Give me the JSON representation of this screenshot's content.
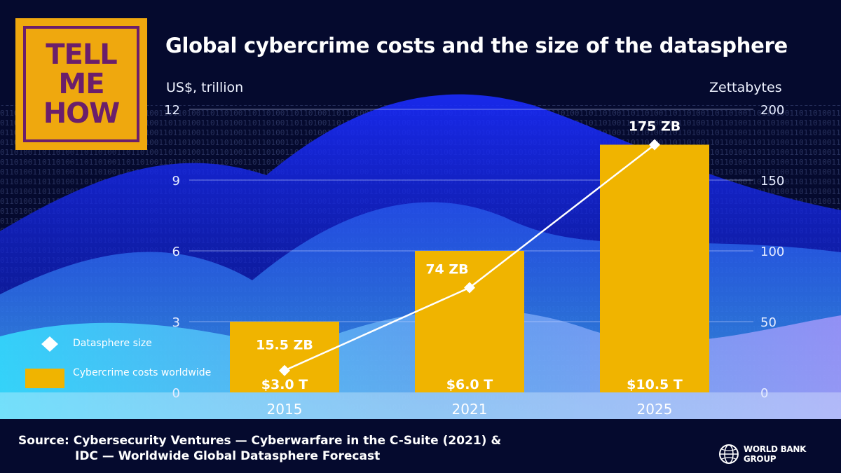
{
  "logo": {
    "line1": "TELL",
    "line2": "ME",
    "line3": "HOW"
  },
  "title": "Global cybercrime costs and the size of the datasphere",
  "left_axis_title": "US$, trillion",
  "right_axis_title": "Zettabytes",
  "source": {
    "line1": "Source: Cybersecurity Ventures — Cyberwarfare in the C-Suite (2021) &",
    "line2": "IDC — Worldwide Global Datasphere Forecast"
  },
  "brand": "WORLD BANK GROUP",
  "legend": {
    "line_label": "Datasphere size",
    "bar_label": "Cybercrime costs worldwide"
  },
  "colors": {
    "bar": "#f0b400",
    "line": "#ffffff",
    "logo_bg": "#efa80e",
    "logo_fg": "#6b1e6b"
  },
  "chart_data": {
    "type": "bar",
    "categories": [
      "2015",
      "2021",
      "2025"
    ],
    "series": [
      {
        "name": "Cybercrime costs worldwide",
        "type": "bar",
        "axis": "left",
        "values": [
          3.0,
          6.0,
          10.5
        ],
        "labels": [
          "$3.0 T",
          "$6.0 T",
          "$10.5 T"
        ]
      },
      {
        "name": "Datasphere size",
        "type": "line",
        "axis": "right",
        "values": [
          15.5,
          74,
          175
        ],
        "labels": [
          "15.5 ZB",
          "74 ZB",
          "175 ZB"
        ]
      }
    ],
    "ylabel": "US$, trillion",
    "ylim": [
      0,
      12
    ],
    "yticks": [
      0,
      3,
      6,
      9,
      12
    ],
    "y2label": "Zettabytes",
    "y2lim": [
      0,
      200
    ],
    "y2ticks": [
      0,
      50,
      100,
      150,
      200
    ],
    "grid": true,
    "legend_position": "bottom-left"
  }
}
